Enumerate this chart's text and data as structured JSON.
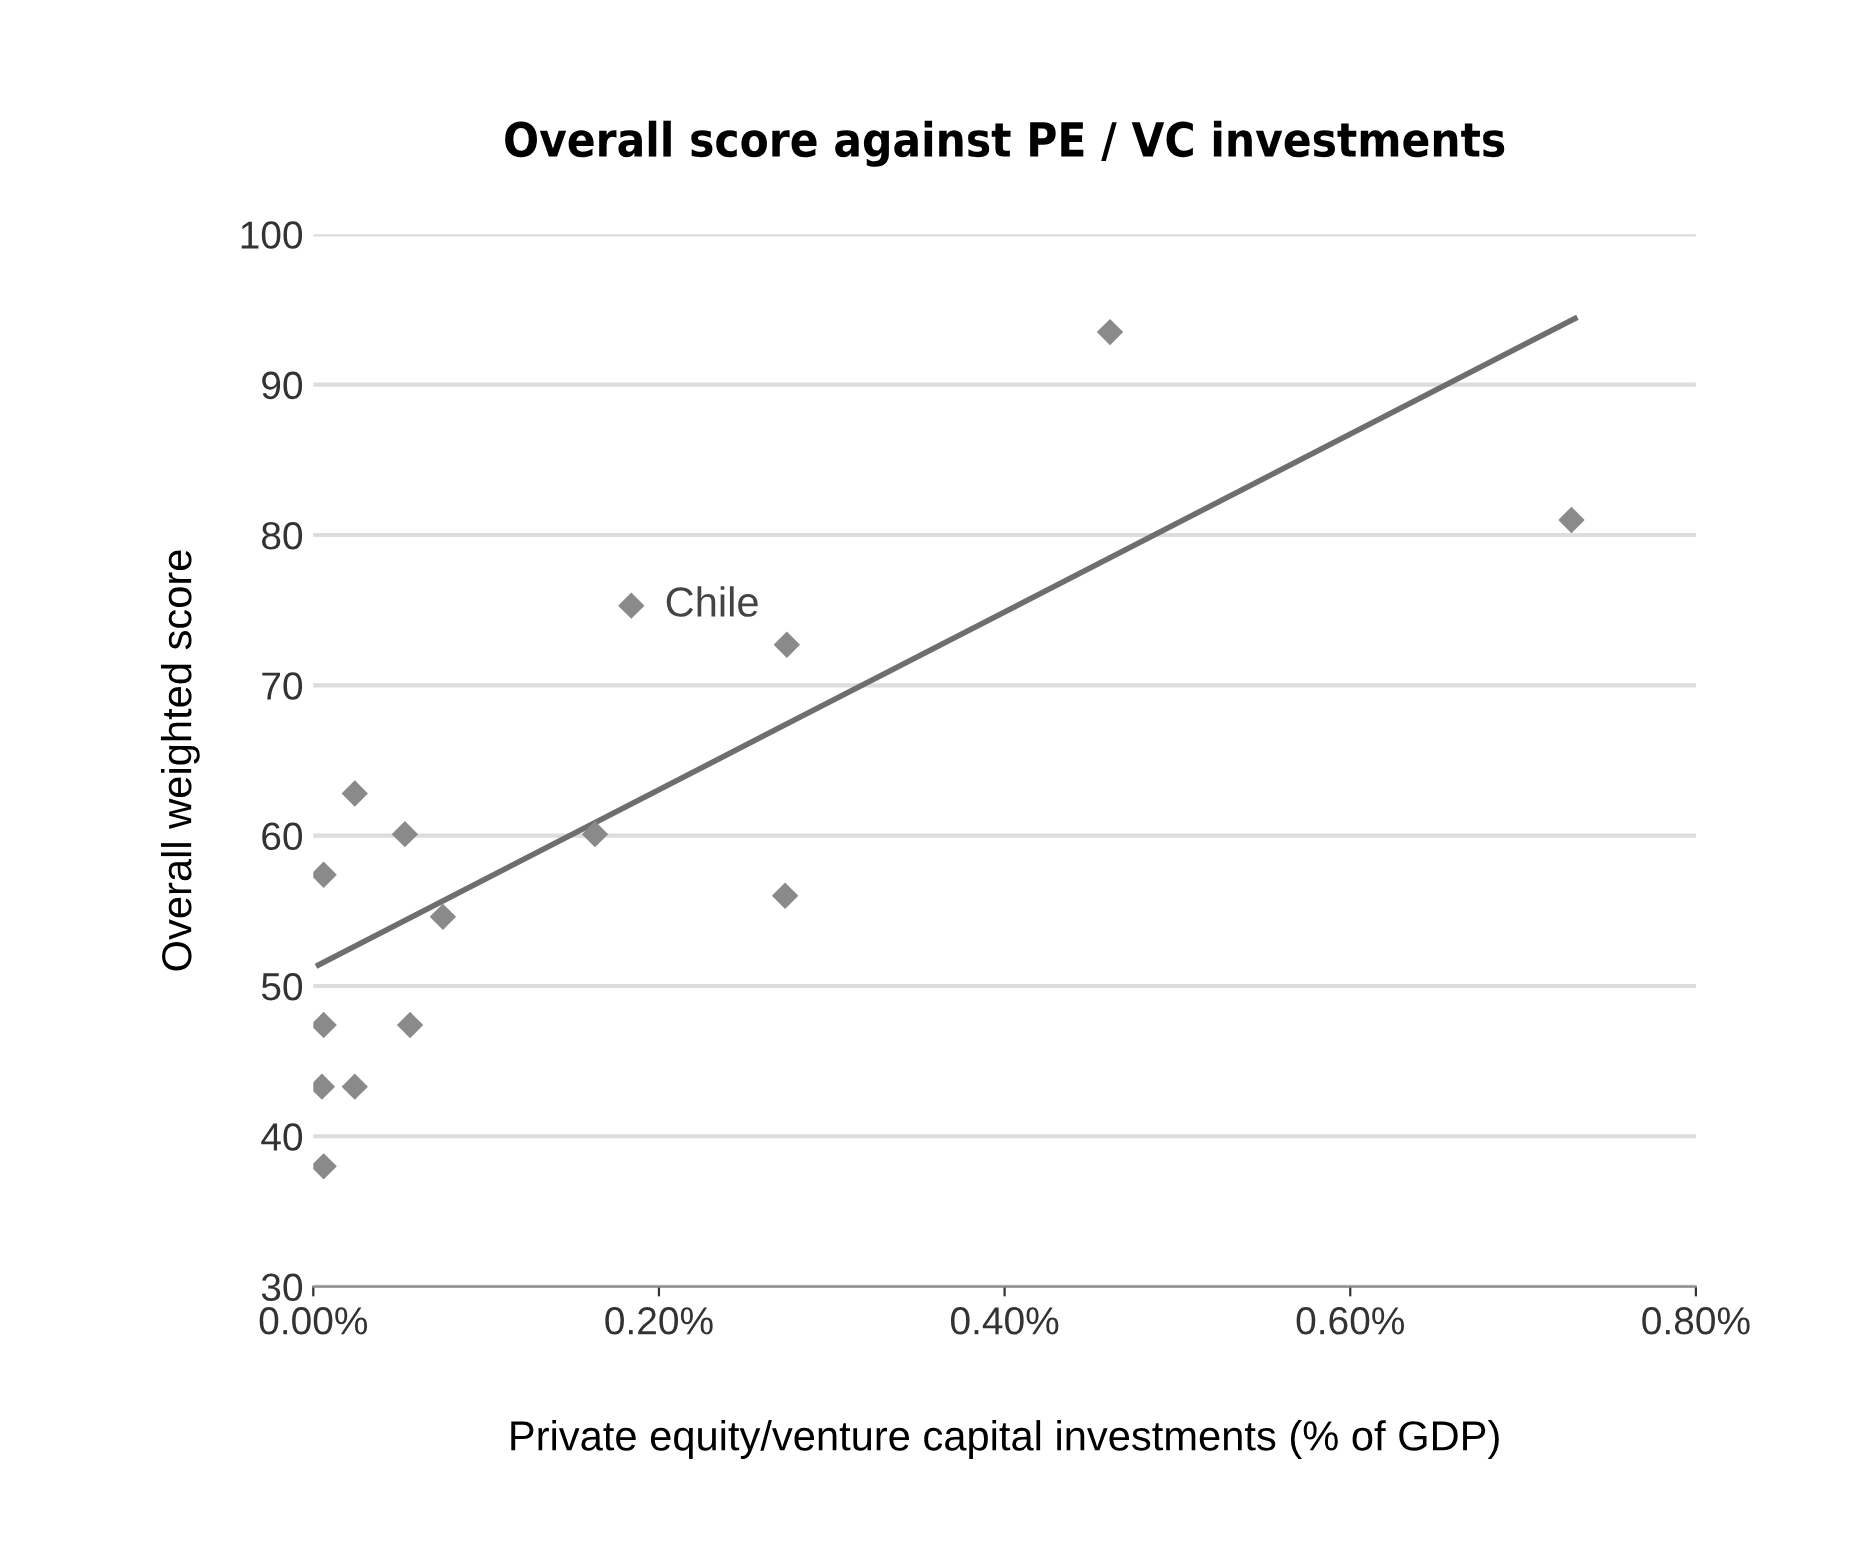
{
  "chart_data": {
    "type": "scatter",
    "title": "Overall score against PE / VC investments",
    "xlabel": "Private equity/venture capital investments (% of GDP)",
    "ylabel": "Overall weighted score",
    "series": [
      {
        "color": "#8a8a8a",
        "x": [
          0.006,
          0.024,
          0.053,
          0.163,
          0.075,
          0.273,
          0.006,
          0.056,
          0.005,
          0.024,
          0.006,
          0.184,
          0.274,
          0.461,
          0.728
        ],
        "values": [
          57.4,
          62.8,
          60.1,
          60.1,
          54.6,
          56.0,
          47.4,
          47.4,
          43.3,
          43.3,
          38.0,
          75.3,
          72.7,
          93.5,
          81.0
        ]
      },
      {
        "type": "line",
        "color": "#6e6e6e",
        "x": [
          0.003,
          0.73
        ],
        "values": [
          51.4,
          94.4
        ],
        "marker": "none"
      }
    ],
    "marker": "diamond",
    "annotations": [
      {
        "text": "Chile",
        "x": 0.184,
        "y": 75.3
      }
    ],
    "xlim": [
      0,
      0.8
    ],
    "ylim": [
      30,
      100
    ],
    "xticks": [
      {
        "value": 0,
        "label": "0.00%"
      },
      {
        "value": 0.2,
        "label": "0.20%"
      },
      {
        "value": 0.4,
        "label": "0.40%"
      },
      {
        "value": 0.6,
        "label": "0.60%"
      },
      {
        "value": 0.8,
        "label": "0.80%"
      }
    ],
    "yticks": [
      30,
      40,
      50,
      60,
      70,
      80,
      90,
      100
    ],
    "grid": "y"
  }
}
